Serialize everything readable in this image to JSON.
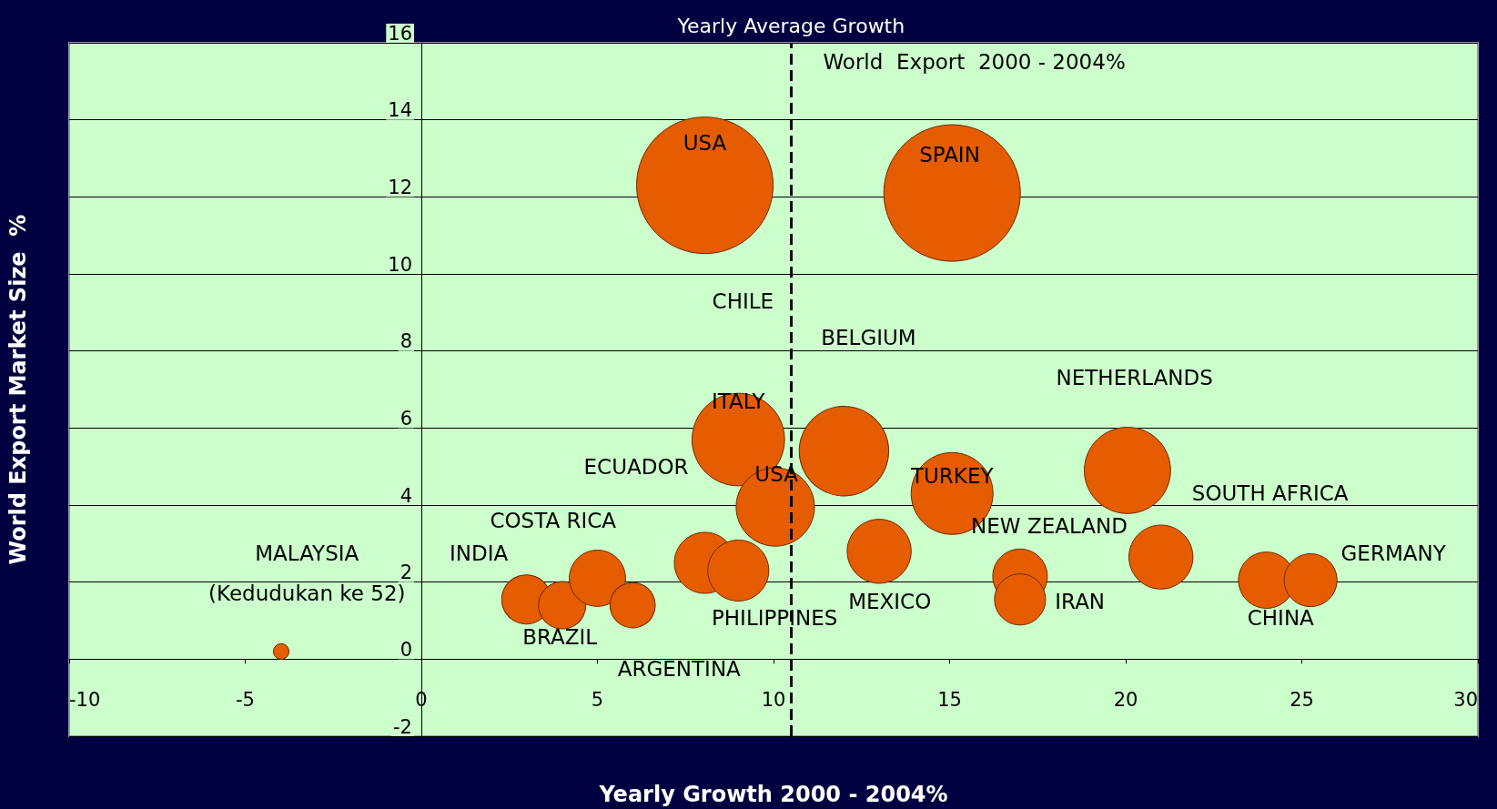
{
  "chart_data": {
    "type": "bubble",
    "xlabel": "Yearly Growth 2000 - 2004%",
    "ylabel": "World Export Market Size  %",
    "x": [
      8.05,
      15.07,
      9.0,
      10.05,
      12.0,
      15.07,
      20.05,
      21.0,
      13.0,
      17.0,
      17.0,
      24.0,
      25.25,
      2.98,
      4.0,
      5.0,
      6.0,
      8.05,
      9.0,
      -3.98
    ],
    "values": [
      12.3,
      12.1,
      5.7,
      3.95,
      5.4,
      4.3,
      4.9,
      2.65,
      2.8,
      2.15,
      1.55,
      2.05,
      2.05,
      1.55,
      1.4,
      2.1,
      1.4,
      2.5,
      2.3,
      0.2
    ],
    "sizes": [
      1,
      1,
      0.46,
      0.33,
      0.43,
      0.36,
      0.4,
      0.22,
      0.22,
      0.16,
      0.14,
      0.17,
      0.15,
      0.13,
      0.12,
      0.17,
      0.11,
      0.2,
      0.2,
      0.013
    ],
    "color": "#e65c00",
    "xlim": [
      -10,
      30
    ],
    "xticks": [
      -10,
      -5,
      0,
      5,
      10,
      15,
      20,
      25,
      30
    ],
    "ylim": [
      -2,
      16
    ],
    "yticks": [
      -2,
      0,
      2,
      4,
      6,
      8,
      10,
      12,
      14,
      16
    ],
    "grid": "y",
    "marker": "circle",
    "ref_lines": [
      {
        "axis": "x",
        "value": 10.5,
        "label": "Yearly Average Growth",
        "line_style": "dashed",
        "color": "#000000"
      }
    ],
    "annotations": [
      "World  Export  2000 - 2004%",
      "USA",
      "SPAIN",
      "CHILE",
      "BELGIUM",
      "NETHERLANDS",
      "ITALY",
      "ECUADOR",
      "USA",
      "TURKEY",
      "SOUTH AFRICA",
      "COSTA RICA",
      "NEW ZEALAND",
      "MALAYSIA",
      "INDIA",
      "GERMANY",
      "(Kedudukan ke 52)",
      "MEXICO",
      "IRAN",
      "PHILIPPINES",
      "CHINA",
      "BRAZIL",
      "ARGENTINA"
    ]
  }
}
